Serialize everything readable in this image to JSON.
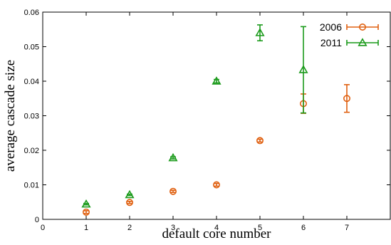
{
  "chart_data": {
    "type": "scatter",
    "title": "",
    "xlabel": "default core number",
    "ylabel": "average cascade size",
    "xlim": [
      0,
      8
    ],
    "ylim": [
      0,
      0.06
    ],
    "x_ticks": [
      0,
      1,
      2,
      3,
      4,
      5,
      6,
      7
    ],
    "y_ticks": [
      0,
      0.01,
      0.02,
      0.03,
      0.04,
      0.05,
      0.06
    ],
    "y_tick_labels": [
      "0",
      "0.01",
      "0.02",
      "0.03",
      "0.04",
      "0.05",
      "0.06"
    ],
    "grid": false,
    "legend_position": "top-right",
    "series": [
      {
        "name": "2006",
        "color": "#e06010",
        "marker": "circle",
        "points": [
          {
            "x": 1,
            "y": 0.0021,
            "err": 0.0004
          },
          {
            "x": 2,
            "y": 0.0049,
            "err": 0.0003
          },
          {
            "x": 3,
            "y": 0.0081,
            "err": 0.0003
          },
          {
            "x": 4,
            "y": 0.01,
            "err": 0.0004
          },
          {
            "x": 5,
            "y": 0.0228,
            "err": 0.0004
          },
          {
            "x": 6,
            "y": 0.0335,
            "err": 0.0028
          },
          {
            "x": 7,
            "y": 0.035,
            "err": 0.004
          }
        ]
      },
      {
        "name": "2011",
        "color": "#1a9a1a",
        "marker": "triangle",
        "points": [
          {
            "x": 1,
            "y": 0.0044,
            "err": 0.0002
          },
          {
            "x": 2,
            "y": 0.0071,
            "err": 0.0002
          },
          {
            "x": 3,
            "y": 0.0178,
            "err": 0.0003
          },
          {
            "x": 4,
            "y": 0.04,
            "err": 0.0005
          },
          {
            "x": 5,
            "y": 0.054,
            "err": 0.0023
          },
          {
            "x": 6,
            "y": 0.0433,
            "err": 0.0125
          }
        ]
      }
    ]
  }
}
